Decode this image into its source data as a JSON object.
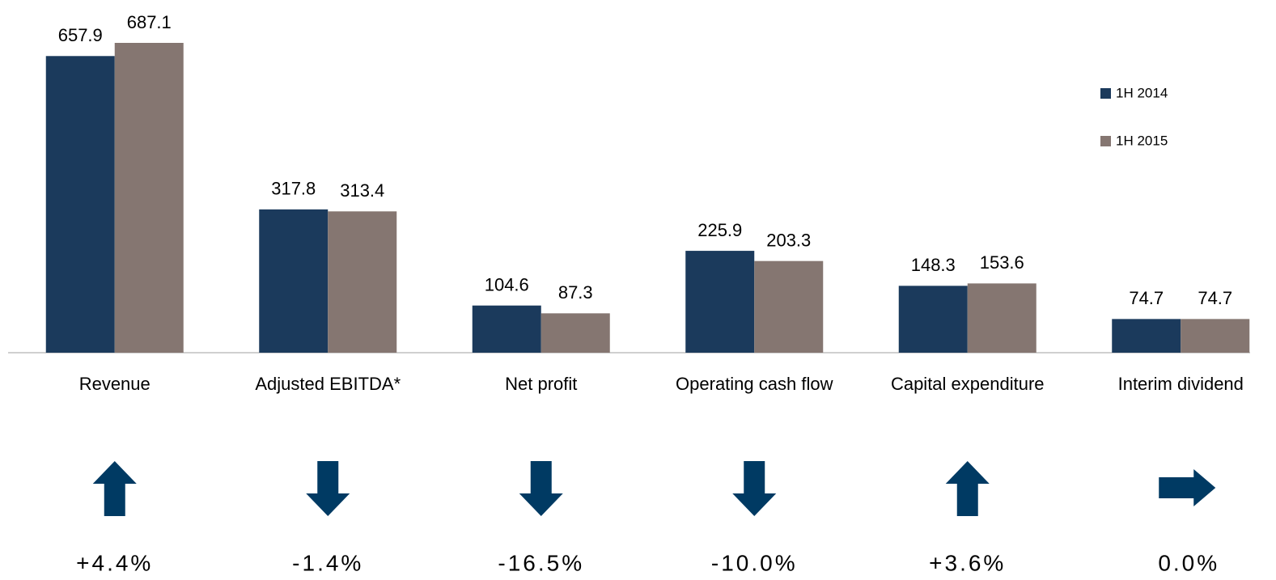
{
  "chart_data": {
    "type": "bar",
    "categories": [
      "Revenue",
      "Adjusted EBITDA*",
      "Net profit",
      "Operating cash flow",
      "Capital expenditure",
      "Interim dividend"
    ],
    "series": [
      {
        "name": "1H 2014",
        "color": "#1b3a5c",
        "values": [
          657.9,
          317.8,
          104.6,
          225.9,
          148.3,
          74.7
        ]
      },
      {
        "name": "1H 2015",
        "color": "#857671",
        "values": [
          687.1,
          313.4,
          87.3,
          203.3,
          153.6,
          74.7
        ]
      }
    ],
    "legend": "right",
    "changes": {
      "color": "#003a63",
      "values": [
        4.4,
        -1.4,
        -16.5,
        -10.0,
        3.6,
        0.0
      ],
      "value_labels": [
        "+4.4%",
        "-1.4%",
        "-16.5%",
        "-10.0%",
        "+3.6%",
        "0.0%"
      ]
    }
  }
}
